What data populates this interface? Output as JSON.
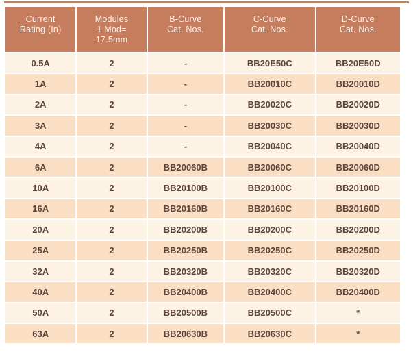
{
  "page": {
    "top_rule_color": "#b3876c"
  },
  "table": {
    "headers": [
      {
        "label": "Current\nRating (In)"
      },
      {
        "label": "Modules\n1 Mod=\n17.5mm"
      },
      {
        "label": "B-Curve\nCat. Nos."
      },
      {
        "label": "C-Curve\nCat. Nos."
      },
      {
        "label": "D-Curve\nCat. Nos."
      }
    ],
    "rows": [
      [
        "0.5A",
        "2",
        "-",
        "BB20E50C",
        "BB20E50D"
      ],
      [
        "1A",
        "2",
        "-",
        "BB20010C",
        "BB20010D"
      ],
      [
        "2A",
        "2",
        "-",
        "BB20020C",
        "BB20020D"
      ],
      [
        "3A",
        "2",
        "-",
        "BB20030C",
        "BB20030D"
      ],
      [
        "4A",
        "2",
        "-",
        "BB20040C",
        "BB20040D"
      ],
      [
        "6A",
        "2",
        "BB20060B",
        "BB20060C",
        "BB20060D"
      ],
      [
        "10A",
        "2",
        "BB20100B",
        "BB20100C",
        "BB20100D"
      ],
      [
        "16A",
        "2",
        "BB20160B",
        "BB20160C",
        "BB20160D"
      ],
      [
        "20A",
        "2",
        "BB20200B",
        "BB20200C",
        "BB20200D"
      ],
      [
        "25A",
        "2",
        "BB20250B",
        "BB20250C",
        "BB20250D"
      ],
      [
        "32A",
        "2",
        "BB20320B",
        "BB20320C",
        "BB20320D"
      ],
      [
        "40A",
        "2",
        "BB20400B",
        "BB20400C",
        "BB20400D"
      ],
      [
        "50A",
        "2",
        "BB20500B",
        "BB20500C",
        "*"
      ],
      [
        "63A",
        "2",
        "BB20630B",
        "BB20630C",
        "*"
      ]
    ],
    "colors": {
      "header_bg": "#c67d5e",
      "header_text": "#fbf3ec",
      "row_cream": "#fdf3e5",
      "row_peach": "#fbdfc4",
      "cell_text": "#5d453b",
      "top_rule": "#b3876c",
      "separator": "#ffffff"
    }
  }
}
